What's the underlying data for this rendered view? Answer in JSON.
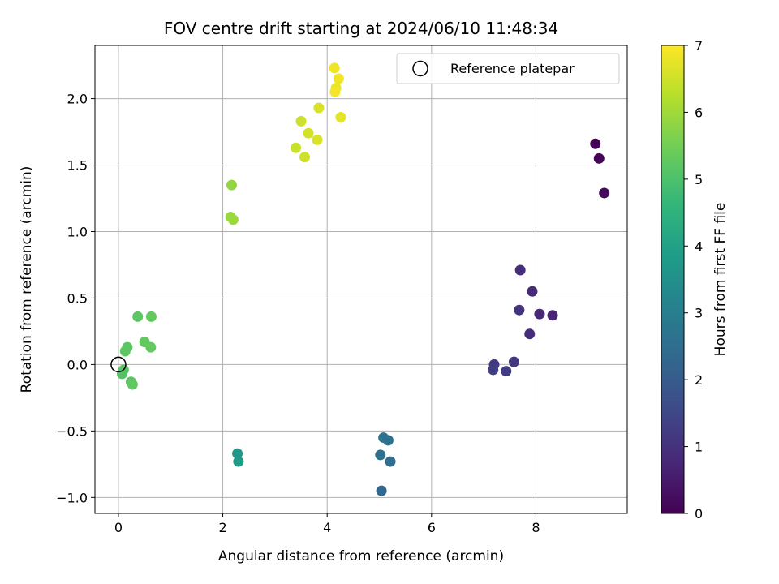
{
  "chart_data": {
    "type": "scatter",
    "title": "FOV centre drift starting at 2024/06/10 11:48:34",
    "xlabel": "Angular distance from reference (arcmin)",
    "ylabel": "Rotation from reference (arcmin)",
    "xlim": [
      -0.45,
      9.75
    ],
    "ylim": [
      -1.12,
      2.4
    ],
    "xticks": [
      0,
      2,
      4,
      6,
      8
    ],
    "xtick_labels": [
      "0",
      "2",
      "4",
      "6",
      "8"
    ],
    "yticks": [
      -1.0,
      -0.5,
      0.0,
      0.5,
      1.0,
      1.5,
      2.0
    ],
    "ytick_labels": [
      "−1.0",
      "−0.5",
      "0.0",
      "0.5",
      "1.0",
      "1.5",
      "2.0"
    ],
    "grid": true,
    "legend": {
      "position": "top-right",
      "entries": [
        {
          "label": "Reference platepar",
          "marker": "open-circle"
        }
      ]
    },
    "reference_point": {
      "x": 0.0,
      "y": 0.0
    },
    "colorbar": {
      "label": "Hours from first FF file",
      "colormap": "viridis",
      "range": [
        0,
        7
      ],
      "ticks": [
        0,
        1,
        2,
        3,
        4,
        5,
        6,
        7
      ],
      "tick_labels": [
        "0",
        "1",
        "2",
        "3",
        "4",
        "5",
        "6",
        "7"
      ]
    },
    "points": [
      {
        "x": 9.14,
        "y": 1.66,
        "c": 0.05
      },
      {
        "x": 9.21,
        "y": 1.55,
        "c": 0.1
      },
      {
        "x": 9.31,
        "y": 1.29,
        "c": 0.15
      },
      {
        "x": 7.7,
        "y": 0.71,
        "c": 0.9
      },
      {
        "x": 7.93,
        "y": 0.55,
        "c": 0.85
      },
      {
        "x": 7.68,
        "y": 0.41,
        "c": 1.0
      },
      {
        "x": 8.07,
        "y": 0.38,
        "c": 0.8
      },
      {
        "x": 8.32,
        "y": 0.37,
        "c": 0.7
      },
      {
        "x": 7.88,
        "y": 0.23,
        "c": 0.9
      },
      {
        "x": 7.58,
        "y": 0.02,
        "c": 1.1
      },
      {
        "x": 7.2,
        "y": 0.0,
        "c": 1.2
      },
      {
        "x": 7.18,
        "y": -0.04,
        "c": 1.3
      },
      {
        "x": 7.43,
        "y": -0.05,
        "c": 1.25
      },
      {
        "x": 5.08,
        "y": -0.55,
        "c": 2.7
      },
      {
        "x": 5.17,
        "y": -0.57,
        "c": 2.6
      },
      {
        "x": 5.02,
        "y": -0.68,
        "c": 2.55
      },
      {
        "x": 5.21,
        "y": -0.73,
        "c": 2.5
      },
      {
        "x": 5.04,
        "y": -0.95,
        "c": 2.3
      },
      {
        "x": 2.28,
        "y": -0.67,
        "c": 3.7
      },
      {
        "x": 2.3,
        "y": -0.73,
        "c": 3.8
      },
      {
        "x": 0.37,
        "y": 0.36,
        "c": 5.2
      },
      {
        "x": 0.63,
        "y": 0.36,
        "c": 5.3
      },
      {
        "x": 0.5,
        "y": 0.17,
        "c": 5.3
      },
      {
        "x": 0.62,
        "y": 0.13,
        "c": 5.3
      },
      {
        "x": 0.17,
        "y": 0.13,
        "c": 5.2
      },
      {
        "x": 0.13,
        "y": 0.1,
        "c": 5.2
      },
      {
        "x": 0.1,
        "y": -0.04,
        "c": 5.2
      },
      {
        "x": 0.07,
        "y": -0.07,
        "c": 5.1
      },
      {
        "x": 0.24,
        "y": -0.13,
        "c": 5.2
      },
      {
        "x": 0.27,
        "y": -0.15,
        "c": 5.25
      },
      {
        "x": 2.17,
        "y": 1.35,
        "c": 5.85
      },
      {
        "x": 2.15,
        "y": 1.11,
        "c": 5.9
      },
      {
        "x": 2.2,
        "y": 1.09,
        "c": 5.95
      },
      {
        "x": 4.14,
        "y": 2.23,
        "c": 6.85
      },
      {
        "x": 4.22,
        "y": 2.15,
        "c": 6.85
      },
      {
        "x": 4.17,
        "y": 2.08,
        "c": 6.8
      },
      {
        "x": 4.15,
        "y": 2.05,
        "c": 6.9
      },
      {
        "x": 3.84,
        "y": 1.93,
        "c": 6.6
      },
      {
        "x": 4.26,
        "y": 1.86,
        "c": 6.75
      },
      {
        "x": 3.5,
        "y": 1.83,
        "c": 6.5
      },
      {
        "x": 3.64,
        "y": 1.74,
        "c": 6.55
      },
      {
        "x": 3.81,
        "y": 1.69,
        "c": 6.6
      },
      {
        "x": 3.4,
        "y": 1.63,
        "c": 6.45
      },
      {
        "x": 3.57,
        "y": 1.56,
        "c": 6.5
      }
    ]
  }
}
